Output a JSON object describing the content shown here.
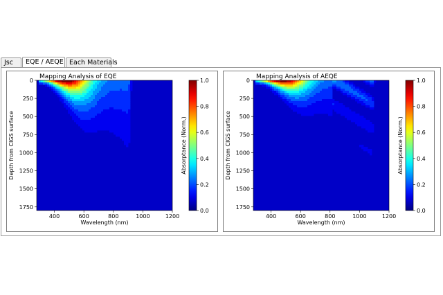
{
  "tabs": [
    {
      "label": "Jsc",
      "active": false
    },
    {
      "label": "EQE / AEQE",
      "active": true
    },
    {
      "label": "Each Materials",
      "active": false
    }
  ],
  "chart_data": [
    {
      "type": "heatmap",
      "title": "Mapping Analysis of EQE",
      "xlabel": "Wavelength (nm)",
      "ylabel": "Depth from CIGS surface",
      "xlim": [
        280,
        1200
      ],
      "ylim": [
        1800,
        0
      ],
      "xticks": [
        400,
        600,
        800,
        1000,
        1200
      ],
      "yticks": [
        0,
        250,
        500,
        750,
        1000,
        1250,
        1500,
        1750
      ],
      "colorbar": {
        "label": "Absorptance (Norm.)",
        "range": [
          0,
          1
        ],
        "ticks": [
          "0.0",
          "0.2",
          "0.4",
          "0.6",
          "0.8",
          "1.0"
        ]
      },
      "band_max_wavelength": 900,
      "interference_fringes": false
    },
    {
      "type": "heatmap",
      "title": "Mapping Analysis of AEQE",
      "xlabel": "Wavelength (nm)",
      "ylabel": "Depth from CIGS surface",
      "xlim": [
        280,
        1200
      ],
      "ylim": [
        1800,
        0
      ],
      "xticks": [
        400,
        600,
        800,
        1000,
        1200
      ],
      "yticks": [
        0,
        250,
        500,
        750,
        1000,
        1250,
        1500,
        1750
      ],
      "colorbar": {
        "label": "Absorptance (Norm.)",
        "range": [
          0,
          1
        ],
        "ticks": [
          "0.0",
          "0.2",
          "0.4",
          "0.6",
          "0.8",
          "1.0"
        ]
      },
      "band_max_wavelength": 1080,
      "interference_fringes": true
    }
  ]
}
